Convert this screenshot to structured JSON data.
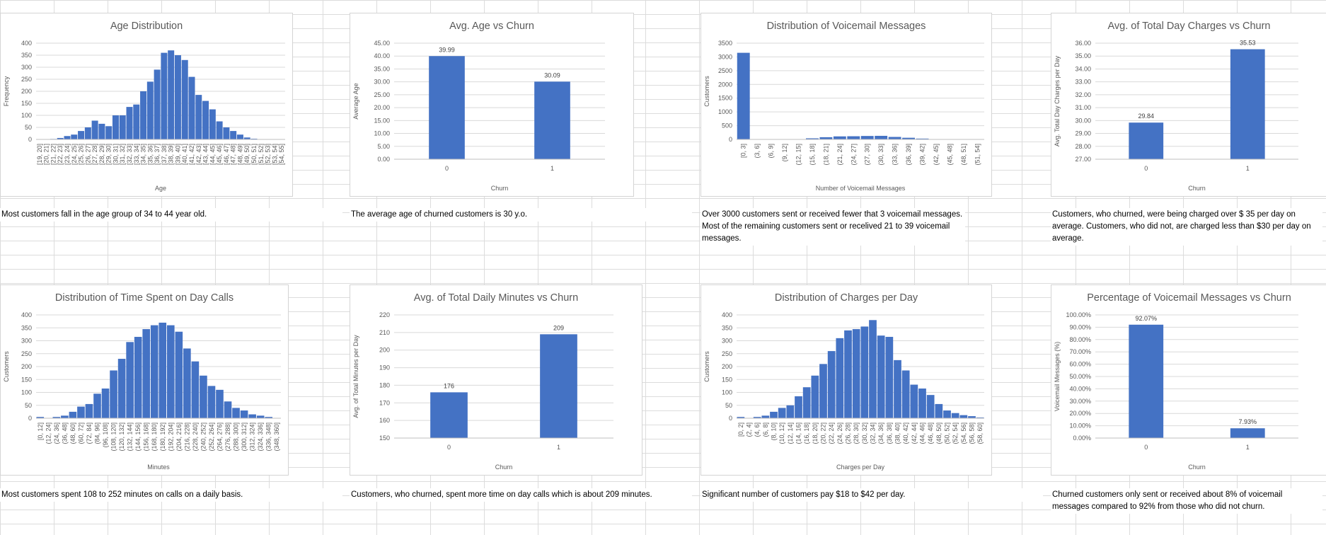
{
  "chart_data": [
    {
      "id": "c1",
      "type": "bar",
      "title": "Age Distribution",
      "xlabel": "Age",
      "ylabel": "Frequency",
      "ylim": [
        0,
        400
      ],
      "yticks": [
        0,
        50,
        100,
        150,
        200,
        250,
        300,
        350,
        400
      ],
      "categories": [
        "[19, 20]",
        "[20, 21]",
        "[21, 22]",
        "[22, 23]",
        "[23, 24]",
        "[24, 25]",
        "[25, 26]",
        "[26, 27]",
        "[27, 28]",
        "[28, 29]",
        "[29, 30]",
        "[30, 31]",
        "[31, 32]",
        "[32, 33]",
        "[33, 34]",
        "[34, 35]",
        "[35, 36]",
        "[36, 37]",
        "[37, 38]",
        "[38, 39]",
        "[39, 40]",
        "[40, 41]",
        "[41, 42]",
        "[42, 43]",
        "[43, 44]",
        "[44, 45]",
        "[45, 46]",
        "[46, 47]",
        "[47, 48]",
        "[48, 49]",
        "[49, 50]",
        "[50, 51]",
        "[51, 52]",
        "[52, 53]",
        "[53, 54]",
        "[54, 55]"
      ],
      "values": [
        0,
        1,
        2,
        6,
        14,
        20,
        35,
        50,
        78,
        65,
        55,
        100,
        100,
        135,
        145,
        200,
        240,
        290,
        360,
        370,
        350,
        330,
        260,
        185,
        160,
        125,
        75,
        50,
        35,
        20,
        8,
        3,
        1,
        0,
        0,
        0
      ],
      "grid": true,
      "legend": "none"
    },
    {
      "id": "c2",
      "type": "bar",
      "title": "Avg. Age vs Churn",
      "xlabel": "Churn",
      "ylabel": "Average Age",
      "ylim": [
        0,
        45
      ],
      "yticks": [
        "0.00",
        "5.00",
        "10.00",
        "15.00",
        "20.00",
        "25.00",
        "30.00",
        "35.00",
        "40.00",
        "45.00"
      ],
      "categories": [
        "0",
        "1"
      ],
      "values": [
        39.99,
        30.09
      ],
      "labels": [
        "39.99",
        "30.09"
      ],
      "grid": true,
      "legend": "none"
    },
    {
      "id": "c3",
      "type": "bar",
      "title": "Distribution of Voicemail Messages",
      "xlabel": "Number of Voicemail Messages",
      "ylabel": "Customers",
      "ylim": [
        0,
        3500
      ],
      "yticks": [
        0,
        500,
        1000,
        1500,
        2000,
        2500,
        3000,
        3500
      ],
      "categories": [
        "[0, 3]",
        "(3, 6]",
        "(6, 9]",
        "(9, 12]",
        "(12, 15]",
        "(15, 18]",
        "(18, 21]",
        "(21, 24]",
        "(24, 27]",
        "(27, 30]",
        "(30, 33]",
        "(33, 36]",
        "(36, 39]",
        "(39, 42]",
        "(42, 45]",
        "(45, 48]",
        "(48, 51]",
        "(51, 54]"
      ],
      "values": [
        3150,
        3,
        4,
        8,
        12,
        40,
        80,
        110,
        115,
        125,
        130,
        90,
        60,
        30,
        12,
        4,
        2,
        1
      ],
      "grid": true,
      "legend": "none"
    },
    {
      "id": "c4",
      "type": "bar",
      "title": "Avg. of Total Day Charges vs Churn",
      "xlabel": "Churn",
      "ylabel": "Avg. Total Day Charges per Day",
      "ylim": [
        27,
        36
      ],
      "yticks": [
        "27.00",
        "28.00",
        "29.00",
        "30.00",
        "31.00",
        "32.00",
        "33.00",
        "34.00",
        "35.00",
        "36.00"
      ],
      "categories": [
        "0",
        "1"
      ],
      "values": [
        29.84,
        35.53
      ],
      "labels": [
        "29.84",
        "35.53"
      ],
      "grid": true,
      "legend": "none"
    },
    {
      "id": "c5",
      "type": "bar",
      "title": "Distribution of Time Spent on Day Calls",
      "xlabel": "Minutes",
      "ylabel": "Customers",
      "ylim": [
        0,
        400
      ],
      "yticks": [
        0,
        50,
        100,
        150,
        200,
        250,
        300,
        350,
        400
      ],
      "categories": [
        "[0, 12]",
        "(12, 24]",
        "(24, 36]",
        "(36, 48]",
        "(48, 60]",
        "(60, 72]",
        "(72, 84]",
        "(84, 96]",
        "(96, 108]",
        "(108, 120]",
        "(120, 132]",
        "(132, 144]",
        "(144, 156]",
        "(156, 168]",
        "(168, 180]",
        "(180, 192]",
        "(192, 204]",
        "(204, 216]",
        "(216, 228]",
        "(228, 240]",
        "(240, 252]",
        "(252, 264]",
        "(264, 276]",
        "(276, 288]",
        "(288, 300]",
        "(300, 312]",
        "(312, 324]",
        "(324, 336]",
        "(336, 348]",
        "(348, 360]"
      ],
      "values": [
        5,
        0,
        5,
        10,
        25,
        45,
        55,
        95,
        115,
        185,
        230,
        295,
        315,
        345,
        360,
        370,
        360,
        335,
        270,
        220,
        165,
        125,
        110,
        65,
        40,
        30,
        15,
        10,
        5,
        1
      ],
      "grid": true,
      "legend": "none"
    },
    {
      "id": "c6",
      "type": "bar",
      "title": "Avg. of Total Daily Minutes vs Churn",
      "xlabel": "Churn",
      "ylabel": "Avg. of Total Minutes per Day",
      "ylim": [
        150,
        220
      ],
      "yticks": [
        150,
        160,
        170,
        180,
        190,
        200,
        210,
        220
      ],
      "categories": [
        "0",
        "1"
      ],
      "values": [
        176,
        209
      ],
      "labels": [
        "176",
        "209"
      ],
      "grid": true,
      "legend": "none"
    },
    {
      "id": "c7",
      "type": "bar",
      "title": "Distribution of Charges per Day",
      "xlabel": "Charges per Day",
      "ylabel": "Customers",
      "ylim": [
        0,
        400
      ],
      "yticks": [
        0,
        50,
        100,
        150,
        200,
        250,
        300,
        350,
        400
      ],
      "categories": [
        "[0, 2]",
        "(2, 4]",
        "(4, 6]",
        "(6, 8]",
        "(8, 10]",
        "(10, 12]",
        "(12, 14]",
        "(14, 16]",
        "(16, 18]",
        "(18, 20]",
        "(20, 22]",
        "(22, 24]",
        "(24, 26]",
        "(26, 28]",
        "(28, 30]",
        "(30, 32]",
        "(32, 34]",
        "(34, 36]",
        "(36, 38]",
        "(38, 40]",
        "(40, 42]",
        "(42, 44]",
        "(44, 46]",
        "(46, 48]",
        "(48, 50]",
        "(50, 52]",
        "(52, 54]",
        "(54, 56]",
        "(56, 58]",
        "(58, 60]"
      ],
      "values": [
        5,
        0,
        5,
        10,
        25,
        40,
        50,
        85,
        120,
        165,
        210,
        260,
        310,
        340,
        345,
        355,
        380,
        320,
        315,
        225,
        185,
        130,
        115,
        90,
        55,
        30,
        20,
        12,
        8,
        3
      ],
      "grid": true,
      "legend": "none"
    },
    {
      "id": "c8",
      "type": "bar",
      "title": "Percentage of Voicemail  Messages vs Churn",
      "xlabel": "Churn",
      "ylabel": "Voicemail Messages (%)",
      "ylim": [
        0,
        100
      ],
      "yticks": [
        "0.00%",
        "10.00%",
        "20.00%",
        "30.00%",
        "40.00%",
        "50.00%",
        "60.00%",
        "70.00%",
        "80.00%",
        "90.00%",
        "100.00%"
      ],
      "categories": [
        "0",
        "1"
      ],
      "values": [
        92.07,
        7.93
      ],
      "labels": [
        "92.07%",
        "7.93%"
      ],
      "grid": true,
      "legend": "none"
    }
  ],
  "notes": {
    "n1": "Most customers fall in the age group of 34 to 44 year old.",
    "n2": "The average age of churned customers is 30 y.o.",
    "n3": "Over 3000 customers sent or received fewer that 3 voicemail messages. Most of the remaining customers sent or recelived 21 to 39 voicemail messages.",
    "n4": "Customers, who churned, were being charged over $ 35 per day on average. Customers, who did not, are charged less than $30 per day on average.",
    "n5": "Most customers spent 108 to 252 minutes on calls on a daily basis.",
    "n6": "Customers, who churned, spent more time on day calls which is about 209 minutes.",
    "n7": "Significant number of customers pay $18 to $42 per day.",
    "n8": "Churned customers only sent or received about 8% of voicemail messages compared to 92% from those who did not churn."
  },
  "colors": {
    "bar": "#4472c4",
    "grid": "#d9d9d9",
    "text": "#595959"
  }
}
